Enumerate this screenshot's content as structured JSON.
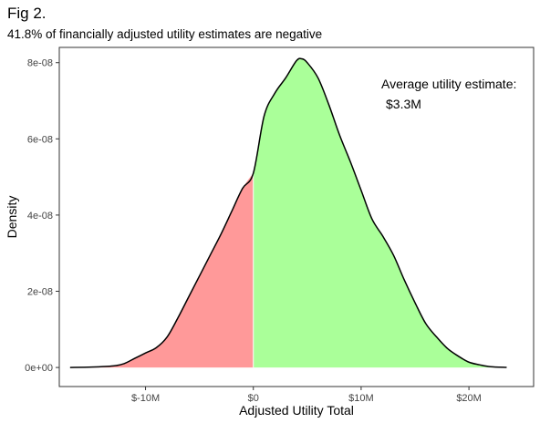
{
  "figure": {
    "title": "Fig 2.",
    "subtitle": "41.8% of financially adjusted utility estimates are negative"
  },
  "chart_data": {
    "type": "area",
    "xlabel": "Adjusted Utility Total",
    "ylabel": "Density",
    "xlim": [
      -18,
      26
    ],
    "ylim": [
      -5e-09,
      8.4e-08
    ],
    "x_ticks": [
      {
        "value": -10,
        "label": "$-10M"
      },
      {
        "value": 0,
        "label": "$0"
      },
      {
        "value": 10,
        "label": "$10M"
      },
      {
        "value": 20,
        "label": "$20M"
      }
    ],
    "y_ticks": [
      {
        "value": 0,
        "label": "0e+00"
      },
      {
        "value": 2e-08,
        "label": "2e-08"
      },
      {
        "value": 4e-08,
        "label": "4e-08"
      },
      {
        "value": 6e-08,
        "label": "6e-08"
      },
      {
        "value": 8e-08,
        "label": "8e-08"
      }
    ],
    "grid": false,
    "split_at": 0,
    "colors": {
      "negative": "#ff9999",
      "positive": "#aaff99",
      "line": "#000000",
      "frame": "#333333"
    },
    "x": [
      -17,
      -15,
      -13,
      -12,
      -11,
      -10,
      -9,
      -8,
      -7,
      -6,
      -5,
      -4,
      -3,
      -2,
      -1,
      0,
      1,
      2,
      3,
      4,
      4.5,
      5,
      6,
      7,
      8,
      9,
      10,
      11,
      12,
      13,
      14,
      15,
      16,
      17,
      18,
      19,
      20,
      21,
      22,
      23.5
    ],
    "density": [
      2e-12,
      1e-10,
      4e-10,
      1e-09,
      2.4e-09,
      3.8e-09,
      5.2e-09,
      8e-09,
      1.3e-08,
      1.85e-08,
      2.4e-08,
      2.95e-08,
      3.5e-08,
      4.1e-08,
      4.7e-08,
      5.1e-08,
      6.6e-08,
      7.2e-08,
      7.6e-08,
      8.05e-08,
      8.1e-08,
      8e-08,
      7.6e-08,
      6.9e-08,
      6.1e-08,
      5.4e-08,
      4.65e-08,
      3.9e-08,
      3.45e-08,
      2.95e-08,
      2.3e-08,
      1.7e-08,
      1.15e-08,
      8e-09,
      5e-09,
      3e-09,
      1.4e-09,
      7e-10,
      2e-10,
      3e-11
    ]
  },
  "annotation": {
    "line1": "Average utility estimate:",
    "line2": "$3.3M"
  }
}
